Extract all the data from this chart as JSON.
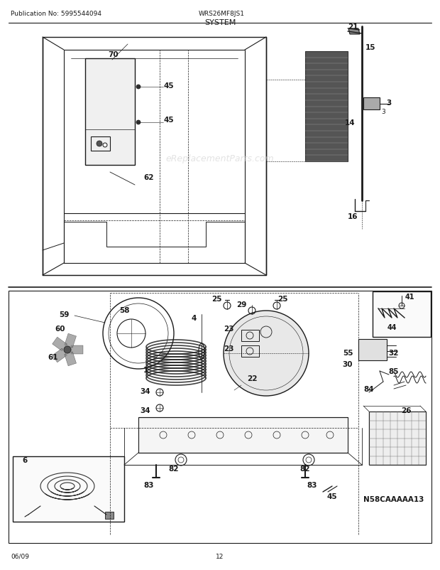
{
  "title": "SYSTEM",
  "pub_no": "Publication No: 5995544094",
  "model": "WRS26MF8JS1",
  "date": "06/09",
  "page": "12",
  "watermark": "eReplacementParts.com",
  "diagram_id": "N58CAAAAA13",
  "bg_color": "#ffffff",
  "lc": "#1a1a1a",
  "tc": "#1a1a1a",
  "figsize": [
    6.2,
    8.03
  ],
  "dpi": 100
}
